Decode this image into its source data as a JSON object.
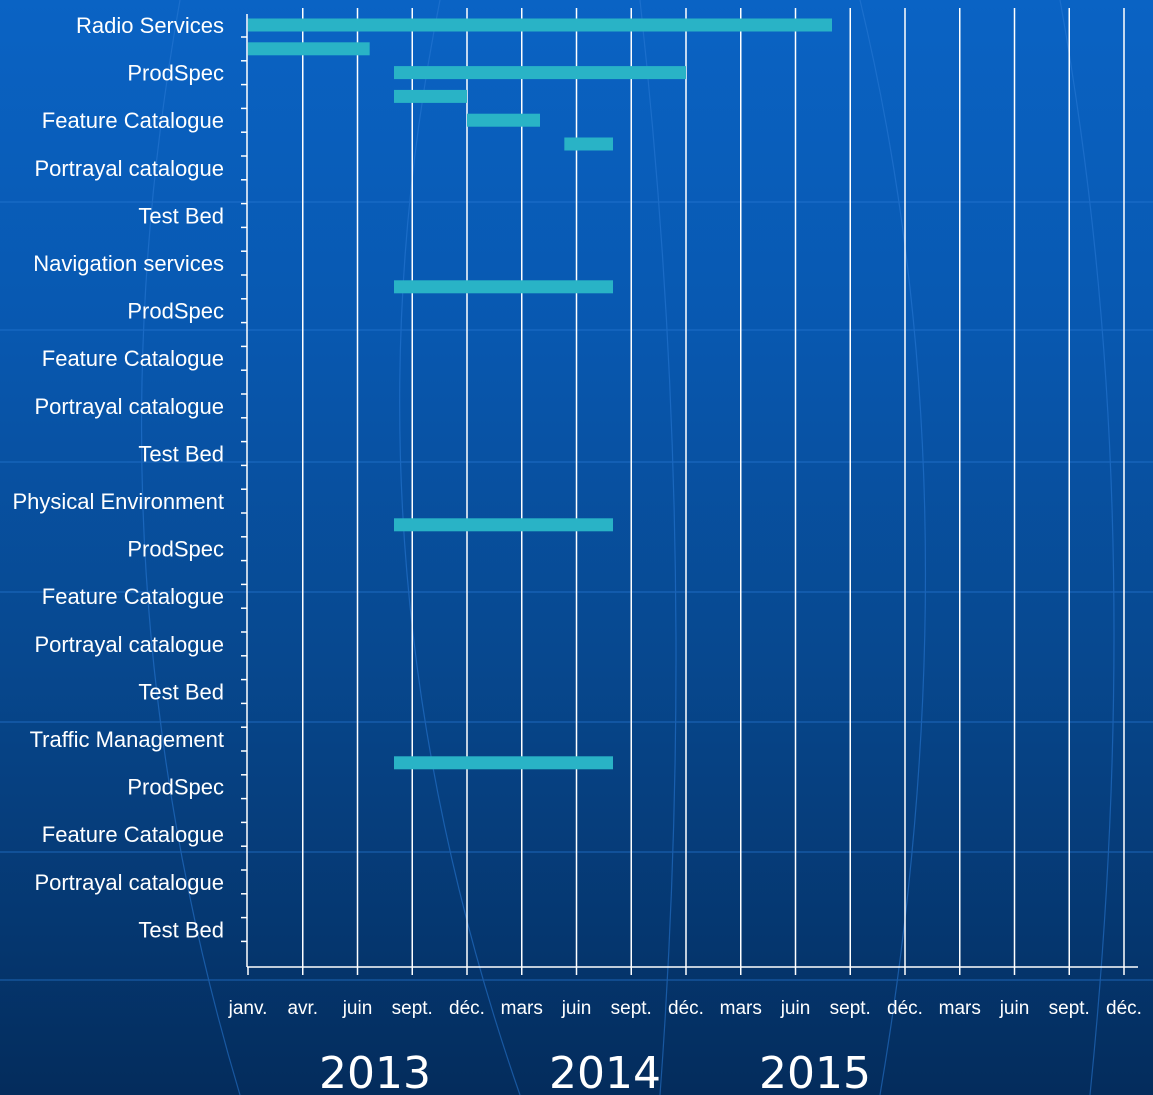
{
  "chart_data": {
    "type": "gantt",
    "title": "",
    "categories": [
      "Radio Services",
      "ProdSpec",
      "Feature Catalogue",
      "Portrayal catalogue",
      "Test Bed",
      "Navigation services",
      "ProdSpec",
      "Feature Catalogue",
      "Portrayal catalogue",
      "Test Bed",
      "Physical Environment",
      "ProdSpec",
      "Feature Catalogue",
      "Portrayal catalogue",
      "Test Bed",
      "Traffic Management",
      "ProdSpec",
      "Feature Catalogue",
      "Portrayal catalogue",
      "Test Bed"
    ],
    "x_tick_labels": [
      "janv.",
      "avr.",
      "juin",
      "sept.",
      "déc.",
      "mars",
      "juin",
      "sept.",
      "déc.",
      "mars",
      "juin",
      "sept.",
      "déc.",
      "mars",
      "juin",
      "sept.",
      "déc."
    ],
    "x_range": [
      "2013-01",
      "2016-01"
    ],
    "year_labels": [
      "2013",
      "2014",
      "2015"
    ],
    "tasks": [
      {
        "row": 0.0,
        "start": "2013-01",
        "end": "2015-01"
      },
      {
        "row": 0.5,
        "start": "2013-01",
        "end": "2013-06"
      },
      {
        "row": 1.0,
        "start": "2013-07",
        "end": "2014-07"
      },
      {
        "row": 1.5,
        "start": "2013-07",
        "end": "2013-10"
      },
      {
        "row": 2.0,
        "start": "2013-10",
        "end": "2014-01"
      },
      {
        "row": 2.5,
        "start": "2014-02",
        "end": "2014-04"
      },
      {
        "row": 5.5,
        "start": "2013-07",
        "end": "2014-04"
      },
      {
        "row": 10.5,
        "start": "2013-07",
        "end": "2014-04"
      },
      {
        "row": 15.5,
        "start": "2013-07",
        "end": "2014-04"
      }
    ],
    "grid": true,
    "colors": {
      "bar": "#29b3c6",
      "grid": "#ffffff",
      "text": "#ffffff"
    }
  }
}
